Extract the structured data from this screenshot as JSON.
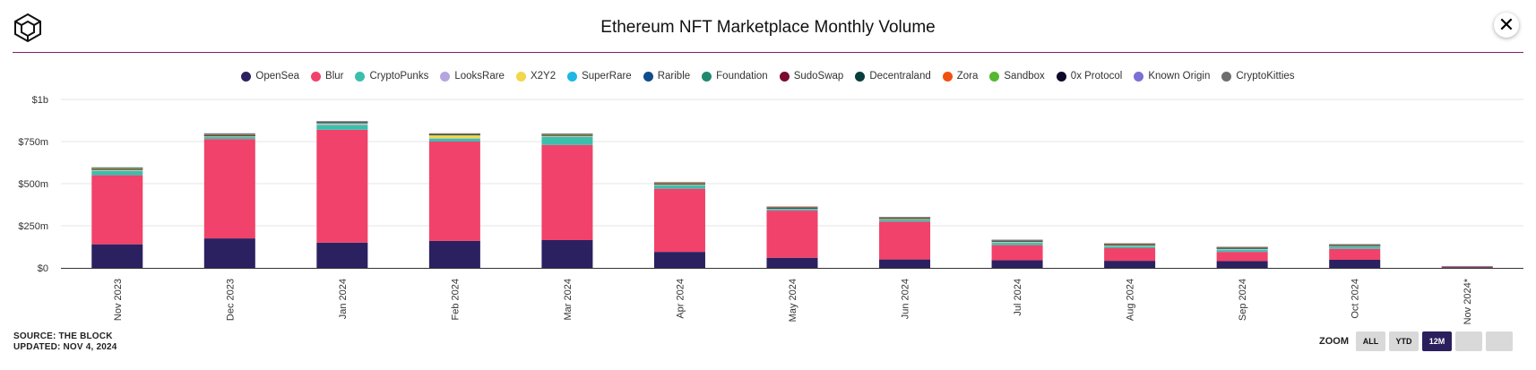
{
  "header": {
    "title": "Ethereum NFT Marketplace Monthly Volume",
    "close_label": "✕"
  },
  "footer": {
    "source": "SOURCE: THE BLOCK",
    "updated": "UPDATED: NOV 4, 2024"
  },
  "zoom": {
    "label": "ZOOM",
    "buttons": [
      "ALL",
      "YTD",
      "12M",
      "",
      ""
    ],
    "active": "12M"
  },
  "chart_data": {
    "type": "bar",
    "stacked": true,
    "title": "Ethereum NFT Marketplace Monthly Volume",
    "categories": [
      "Nov 2023",
      "Dec 2023",
      "Jan 2024",
      "Feb 2024",
      "Mar 2024",
      "Apr 2024",
      "May 2024",
      "Jun 2024",
      "Jul 2024",
      "Aug 2024",
      "Sep 2024",
      "Oct 2024",
      "Nov 2024*"
    ],
    "y_ticks": [
      "$0",
      "$250m",
      "$500m",
      "$750m",
      "$1b"
    ],
    "ylim": [
      0,
      1000
    ],
    "unit": "$m",
    "grid": true,
    "legend_position": "top",
    "series": [
      {
        "name": "OpenSea",
        "color": "#2b2160",
        "values": [
          140,
          175,
          150,
          160,
          165,
          95,
          60,
          50,
          45,
          42,
          40,
          48,
          3
        ]
      },
      {
        "name": "Blur",
        "color": "#f0426a",
        "values": [
          410,
          590,
          670,
          590,
          565,
          375,
          280,
          225,
          90,
          75,
          55,
          65,
          7
        ]
      },
      {
        "name": "CryptoPunks",
        "color": "#3bbfad",
        "values": [
          25,
          12,
          28,
          18,
          48,
          20,
          10,
          12,
          15,
          12,
          12,
          14,
          1
        ]
      },
      {
        "name": "LooksRare",
        "color": "#b4a7e0",
        "values": [
          3,
          2,
          5,
          2,
          2,
          2,
          1,
          1,
          1,
          1,
          1,
          1,
          0
        ]
      },
      {
        "name": "X2Y2",
        "color": "#f2d64b",
        "values": [
          4,
          3,
          3,
          18,
          4,
          4,
          2,
          2,
          2,
          3,
          2,
          2,
          0
        ]
      },
      {
        "name": "SuperRare",
        "color": "#1cb8e3",
        "values": [
          2,
          2,
          6,
          2,
          2,
          2,
          1,
          3,
          5,
          3,
          6,
          2,
          0
        ]
      },
      {
        "name": "Rarible",
        "color": "#0f4c8a",
        "values": [
          1,
          1,
          1,
          1,
          1,
          1,
          1,
          1,
          1,
          1,
          1,
          1,
          0
        ]
      },
      {
        "name": "Foundation",
        "color": "#1f8a70",
        "values": [
          1,
          1,
          1,
          1,
          1,
          1,
          1,
          1,
          1,
          1,
          1,
          1,
          0
        ]
      },
      {
        "name": "SudoSwap",
        "color": "#7a0a33",
        "values": [
          1,
          2,
          1,
          1,
          1,
          1,
          1,
          1,
          1,
          1,
          1,
          1,
          0
        ]
      },
      {
        "name": "Decentraland",
        "color": "#0a3d3d",
        "values": [
          1,
          1,
          1,
          1,
          1,
          1,
          1,
          1,
          1,
          1,
          1,
          1,
          0
        ]
      },
      {
        "name": "Zora",
        "color": "#f0520e",
        "values": [
          1,
          1,
          1,
          1,
          1,
          1,
          1,
          1,
          1,
          1,
          1,
          1,
          0
        ]
      },
      {
        "name": "Sandbox",
        "color": "#56b82e",
        "values": [
          6,
          4,
          2,
          2,
          5,
          4,
          3,
          2,
          2,
          3,
          2,
          2,
          0
        ]
      },
      {
        "name": "0x Protocol",
        "color": "#0d0a2a",
        "values": [
          0,
          0,
          0,
          0,
          0,
          0,
          0,
          0,
          0,
          0,
          0,
          0,
          0
        ]
      },
      {
        "name": "Known Origin",
        "color": "#7b6fd6",
        "values": [
          1,
          1,
          1,
          1,
          1,
          1,
          1,
          1,
          1,
          1,
          1,
          1,
          0
        ]
      },
      {
        "name": "CryptoKitties",
        "color": "#6e6e6e",
        "values": [
          1,
          4,
          1,
          1,
          1,
          1,
          1,
          1,
          1,
          1,
          1,
          1,
          0
        ]
      }
    ]
  }
}
